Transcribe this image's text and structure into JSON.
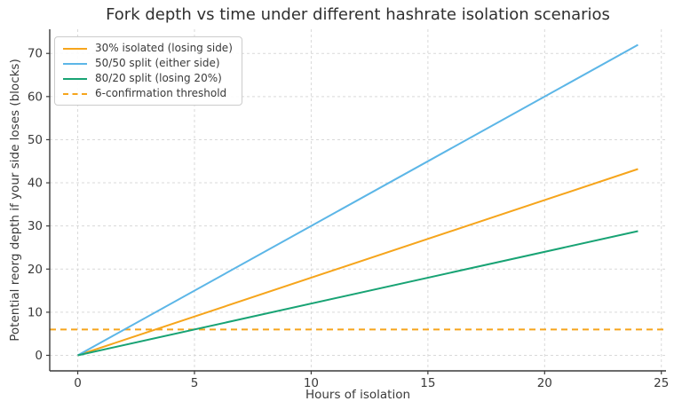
{
  "chart_data": {
    "type": "line",
    "title": "Fork depth vs time under different hashrate isolation scenarios",
    "xlabel": "Hours of isolation",
    "ylabel": "Potential reorg depth if your side loses (blocks)",
    "x": [
      0,
      24
    ],
    "series": [
      {
        "name": "30% isolated (losing side)",
        "values": [
          0,
          43.2
        ],
        "color": "#f6a51c",
        "dash": "solid"
      },
      {
        "name": "50/50 split (either side)",
        "values": [
          0,
          72
        ],
        "color": "#5cb6e7",
        "dash": "solid"
      },
      {
        "name": "80/20 split (losing 20%)",
        "values": [
          0,
          28.8
        ],
        "color": "#18a374",
        "dash": "solid"
      }
    ],
    "threshold": {
      "label": "6-confirmation threshold",
      "value": 6,
      "color": "#f6a51c",
      "dash": "dashed"
    },
    "xticks": [
      0,
      5,
      10,
      15,
      20,
      25
    ],
    "yticks": [
      0,
      10,
      20,
      30,
      40,
      50,
      60,
      70
    ],
    "xlim": [
      -1.2,
      25.2
    ],
    "ylim": [
      -3.6,
      75.6
    ],
    "grid": true,
    "legend_position": "upper-left"
  },
  "style": {
    "grid_color": "#d9d9d9",
    "spine_color": "#3a3a3a",
    "text_color": "#3a3a3a",
    "background": "#ffffff"
  }
}
